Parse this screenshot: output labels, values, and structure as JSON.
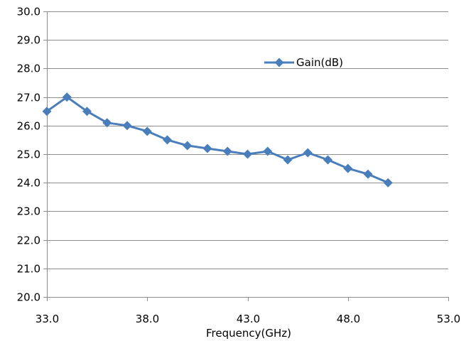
{
  "chart_data": {
    "type": "line",
    "title": "",
    "xlabel": "Frequency(GHz)",
    "ylabel": "",
    "xlim": [
      33.0,
      53.0
    ],
    "ylim": [
      20.0,
      30.0
    ],
    "x_ticks": [
      "33.0",
      "38.0",
      "43.0",
      "48.0",
      "53.0"
    ],
    "y_ticks": [
      "20.0",
      "21.0",
      "22.0",
      "23.0",
      "24.0",
      "25.0",
      "26.0",
      "27.0",
      "28.0",
      "29.0",
      "30.0"
    ],
    "grid": "horizontal",
    "legend_position": "top-right",
    "series": [
      {
        "name": "Gain(dB)",
        "color": "#4a7ebb",
        "marker": "diamond",
        "x": [
          33,
          34,
          35,
          36,
          37,
          38,
          39,
          40,
          41,
          42,
          43,
          44,
          45,
          46,
          47,
          48,
          49,
          50
        ],
        "y": [
          26.5,
          27.0,
          26.5,
          26.1,
          26.0,
          25.8,
          25.5,
          25.3,
          25.2,
          25.1,
          25.0,
          25.1,
          24.8,
          25.05,
          24.8,
          24.5,
          24.3,
          24.0
        ]
      }
    ]
  }
}
